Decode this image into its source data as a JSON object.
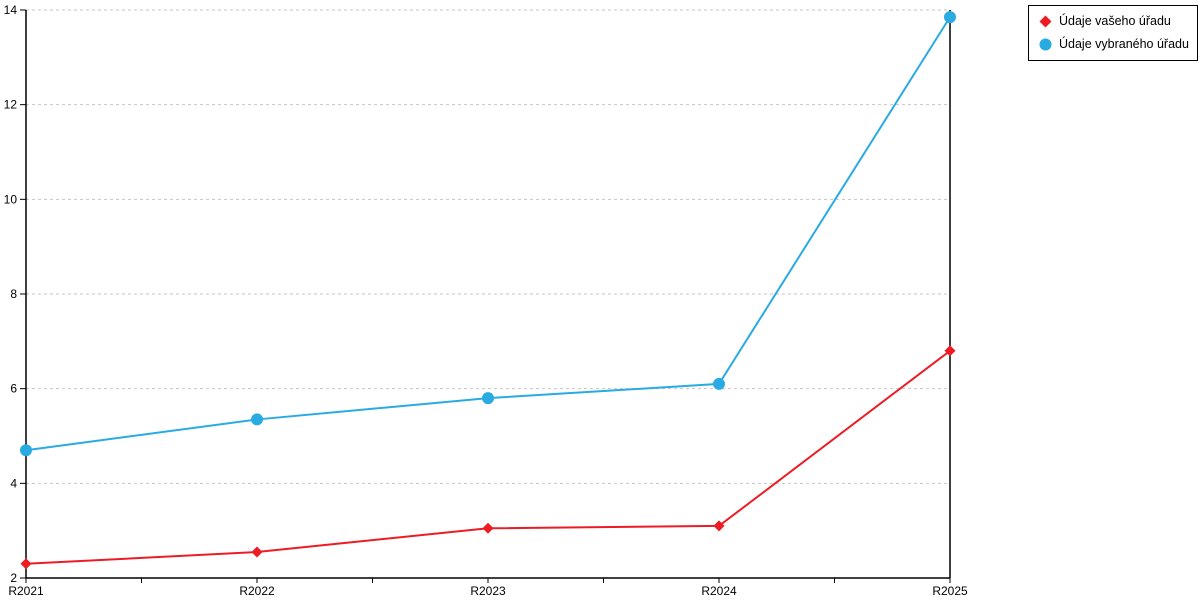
{
  "chart_data": {
    "type": "line",
    "title": "",
    "xlabel": "",
    "ylabel": "",
    "categories": [
      "R2021",
      "R2022",
      "R2023",
      "R2024",
      "R2025"
    ],
    "series": [
      {
        "name": "Údaje vašeho úřadu",
        "marker": "diamond",
        "color": "#ED1C24",
        "values": [
          2.3,
          2.55,
          3.05,
          3.1,
          6.8
        ]
      },
      {
        "name": "Údaje vybraného úřadu",
        "marker": "circle",
        "color": "#29ABE2",
        "values": [
          4.7,
          5.35,
          5.8,
          6.1,
          13.85
        ]
      }
    ],
    "ylim": [
      2,
      14
    ],
    "yticks": [
      2,
      4,
      6,
      8,
      10,
      12,
      14
    ],
    "grid": "horizontal-dashed",
    "legend_position": "top-right"
  },
  "legend": {
    "items": [
      {
        "label": "Údaje vašeho úřadu",
        "marker": "diamond",
        "color": "#ED1C24"
      },
      {
        "label": "Údaje vybraného úřadu",
        "marker": "circle",
        "color": "#29ABE2"
      }
    ]
  },
  "colors": {
    "axis": "#000000",
    "grid": "#c6c6c6",
    "background": "#ffffff",
    "text": "#000000"
  }
}
